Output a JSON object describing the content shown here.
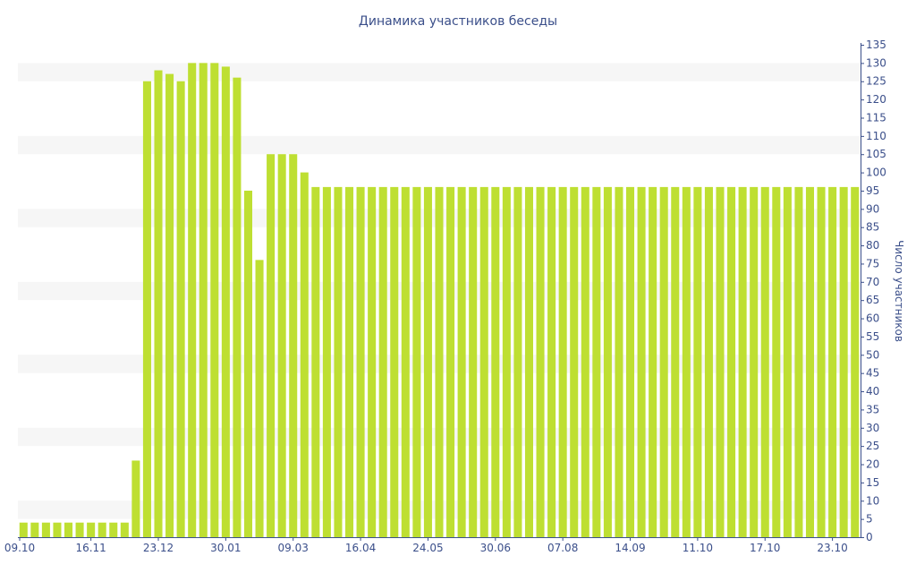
{
  "chart_data": {
    "type": "bar",
    "title": "Динамика участников беседы",
    "ylabel": "Число участников",
    "xlabel": "",
    "ylim": [
      0,
      135
    ],
    "y_ticks": [
      0,
      5,
      10,
      15,
      20,
      25,
      30,
      35,
      40,
      45,
      50,
      55,
      60,
      65,
      70,
      75,
      80,
      85,
      90,
      95,
      100,
      105,
      110,
      115,
      120,
      125,
      130,
      135
    ],
    "y_axis_side": "right",
    "grid": "alternating horizontal bands",
    "x_tick_labels": [
      {
        "index": 0,
        "label": "09.10"
      },
      {
        "index": 6,
        "label": "16.11"
      },
      {
        "index": 12,
        "label": "23.12"
      },
      {
        "index": 18,
        "label": "30.01"
      },
      {
        "index": 24,
        "label": "09.03"
      },
      {
        "index": 30,
        "label": "16.04"
      },
      {
        "index": 36,
        "label": "24.05"
      },
      {
        "index": 42,
        "label": "30.06"
      },
      {
        "index": 48,
        "label": "07.08"
      },
      {
        "index": 54,
        "label": "14.09"
      },
      {
        "index": 60,
        "label": "11.10"
      },
      {
        "index": 66,
        "label": "17.10"
      },
      {
        "index": 72,
        "label": "23.10"
      }
    ],
    "values": [
      4,
      4,
      4,
      4,
      4,
      4,
      4,
      4,
      4,
      4,
      21,
      125,
      128,
      127,
      125,
      130,
      130,
      130,
      129,
      126,
      95,
      76,
      105,
      105,
      105,
      100,
      96,
      96,
      96,
      96,
      96,
      96,
      96,
      96,
      96,
      96,
      96,
      96,
      96,
      96,
      96,
      96,
      96,
      96,
      96,
      96,
      96,
      96,
      96,
      96,
      96,
      96,
      96,
      96,
      96,
      96,
      96,
      96,
      96,
      96,
      96,
      96,
      96,
      96,
      96,
      96,
      96,
      96,
      96,
      96,
      96,
      96,
      96,
      96,
      96
    ],
    "colors": {
      "bar": "#bedf32",
      "band": "#f6f6f6",
      "text": "#3b4f8a",
      "axis": "#3b4f8a"
    }
  }
}
